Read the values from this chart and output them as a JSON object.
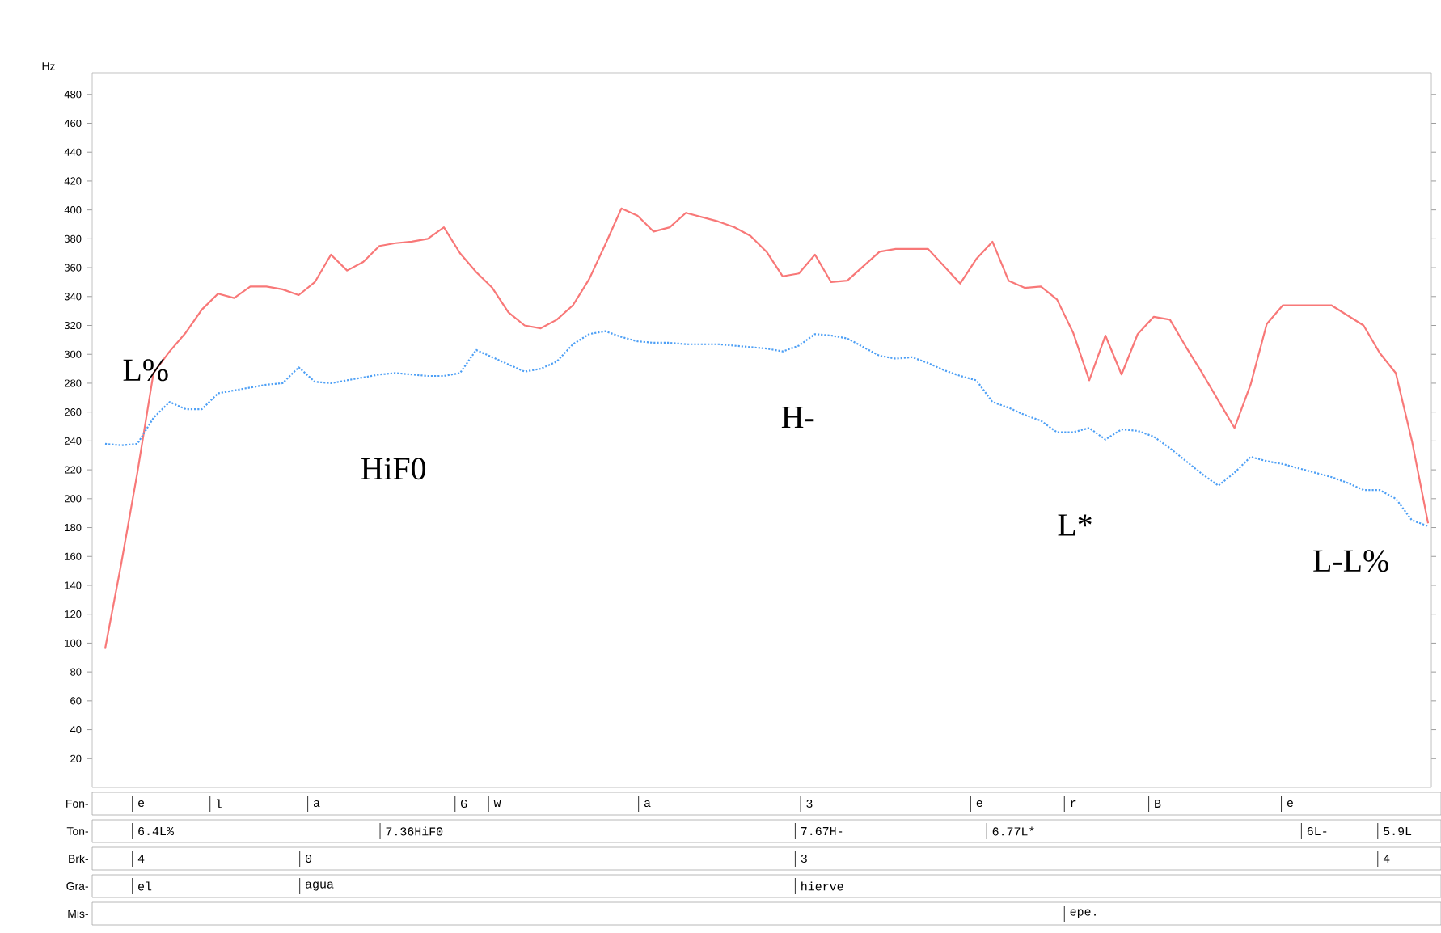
{
  "chart_data": {
    "type": "line",
    "ylabel": "Hz",
    "ylim": [
      0,
      495
    ],
    "categories": [
      null,
      null,
      null,
      null,
      null,
      null,
      null,
      null,
      null,
      null,
      null,
      null,
      null,
      null,
      null,
      null,
      null,
      null,
      null,
      null,
      null,
      null,
      null,
      null,
      null,
      null,
      null,
      null,
      null,
      null,
      null,
      null,
      null,
      null,
      null,
      null,
      null,
      null,
      null,
      null,
      null,
      null,
      null,
      null,
      null,
      null,
      null,
      null,
      null,
      null,
      null,
      null,
      null,
      null,
      null,
      null,
      null,
      null,
      null,
      null,
      null,
      null,
      null,
      null,
      null,
      null,
      null,
      null,
      null,
      null,
      null,
      null,
      null,
      null,
      null,
      null,
      null,
      null,
      null,
      null,
      null,
      null,
      null
    ],
    "yticks": [
      20,
      40,
      60,
      80,
      100,
      120,
      140,
      160,
      180,
      200,
      220,
      240,
      260,
      280,
      300,
      320,
      340,
      360,
      380,
      400,
      420,
      440,
      460,
      480
    ],
    "tick_labels": "y",
    "series": [
      {
        "color": "#f87878",
        "line_style": "solid",
        "values": [
          96,
          155,
          218,
          287,
          302,
          315,
          331,
          342,
          339,
          347,
          347,
          345,
          341,
          350,
          369,
          358,
          364,
          375,
          377,
          378,
          380,
          388,
          370,
          357,
          346,
          329,
          320,
          318,
          324,
          334,
          352,
          376,
          401,
          396,
          385,
          388,
          398,
          395,
          392,
          388,
          382,
          371,
          354,
          356,
          369,
          350,
          351,
          361,
          371,
          373,
          373,
          373,
          361,
          349,
          366,
          378,
          351,
          346,
          347,
          338,
          315,
          282,
          313,
          286,
          314,
          326,
          324,
          305,
          287,
          268,
          249,
          279,
          321,
          334,
          334,
          334,
          334,
          327,
          320,
          301,
          287,
          240,
          183
        ]
      },
      {
        "color": "#4d9ff5",
        "line_style": "dotted",
        "values": [
          238,
          237,
          238,
          256,
          267,
          262,
          262,
          273,
          275,
          277,
          279,
          280,
          291,
          281,
          280,
          282,
          284,
          286,
          287,
          286,
          285,
          285,
          287,
          303,
          298,
          293,
          288,
          290,
          295,
          307,
          314,
          316,
          312,
          309,
          308,
          308,
          307,
          307,
          307,
          306,
          305,
          304,
          302,
          306,
          314,
          313,
          311,
          305,
          299,
          297,
          298,
          294,
          289,
          285,
          282,
          267,
          263,
          258,
          254,
          246,
          246,
          249,
          241,
          248,
          247,
          243,
          235,
          226,
          217,
          209,
          218,
          229,
          226,
          224,
          221,
          218,
          215,
          211,
          206,
          206,
          200,
          185,
          181
        ]
      }
    ],
    "annotations": [
      "L%",
      "HiF0",
      "H-",
      "L*",
      "L-L%",
      "Fon-",
      "e",
      "l",
      "a",
      "G",
      "w",
      "a",
      "3",
      "e",
      "r",
      "B",
      "e",
      "Ton-",
      "6.4L%",
      "7.36HiF0",
      "7.67H-",
      "6.77L*",
      "6L-",
      "5.9L",
      "Brk-",
      "4",
      "0",
      "3",
      "4",
      "Gra-",
      "el",
      "agua",
      "hierve",
      "Mis-",
      "epe."
    ]
  }
}
